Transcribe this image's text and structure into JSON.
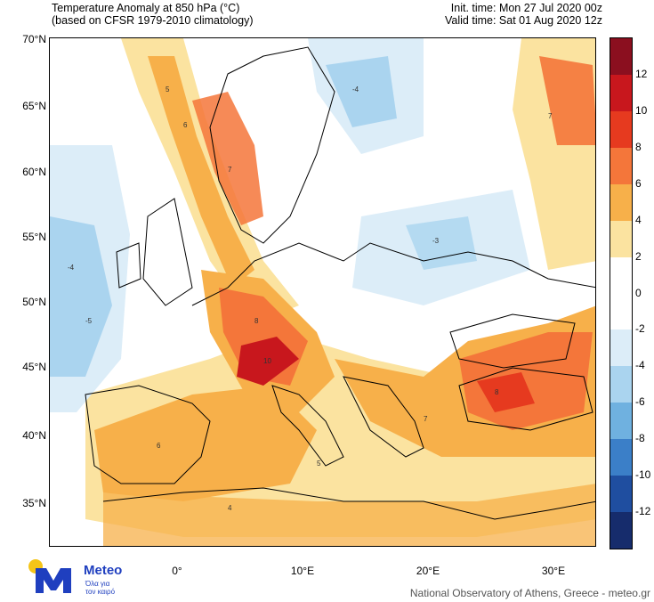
{
  "header": {
    "title_line1": "Temperature Anomaly at 850 hPa (°C)",
    "title_line2": "(based on CFSR 1979-2010 climatology)",
    "init_time": "Init. time: Mon 27 Jul 2020 00z",
    "valid_time": "Valid time: Sat 01 Aug 2020 12z"
  },
  "lat_labels": [
    "70°N",
    "65°N",
    "60°N",
    "55°N",
    "50°N",
    "45°N",
    "40°N",
    "35°N"
  ],
  "lon_labels": [
    "0°",
    "10°E",
    "20°E",
    "30°E"
  ],
  "colorbar": {
    "colors": [
      "#8b0f1f",
      "#c8171d",
      "#e63a1f",
      "#f4763a",
      "#f7b04a",
      "#fbe3a0",
      "#ffffff",
      "#ffffff",
      "#dcedf8",
      "#aad4ef",
      "#6fb1e0",
      "#3b7fc8",
      "#1f4ea0",
      "#162c6c"
    ],
    "labels": [
      "12",
      "10",
      "8",
      "6",
      "4",
      "2",
      "0",
      "-2",
      "-4",
      "-6",
      "-8",
      "-10",
      "-12"
    ]
  },
  "logo": {
    "name": "Meteo",
    "tagline_line1": "Όλα για",
    "tagline_line2": "τον καιρό",
    "brand_color": "#1f3fbf",
    "sun_color": "#f5c518"
  },
  "footer": "National Observatory of Athens, Greece - meteo.gr"
}
